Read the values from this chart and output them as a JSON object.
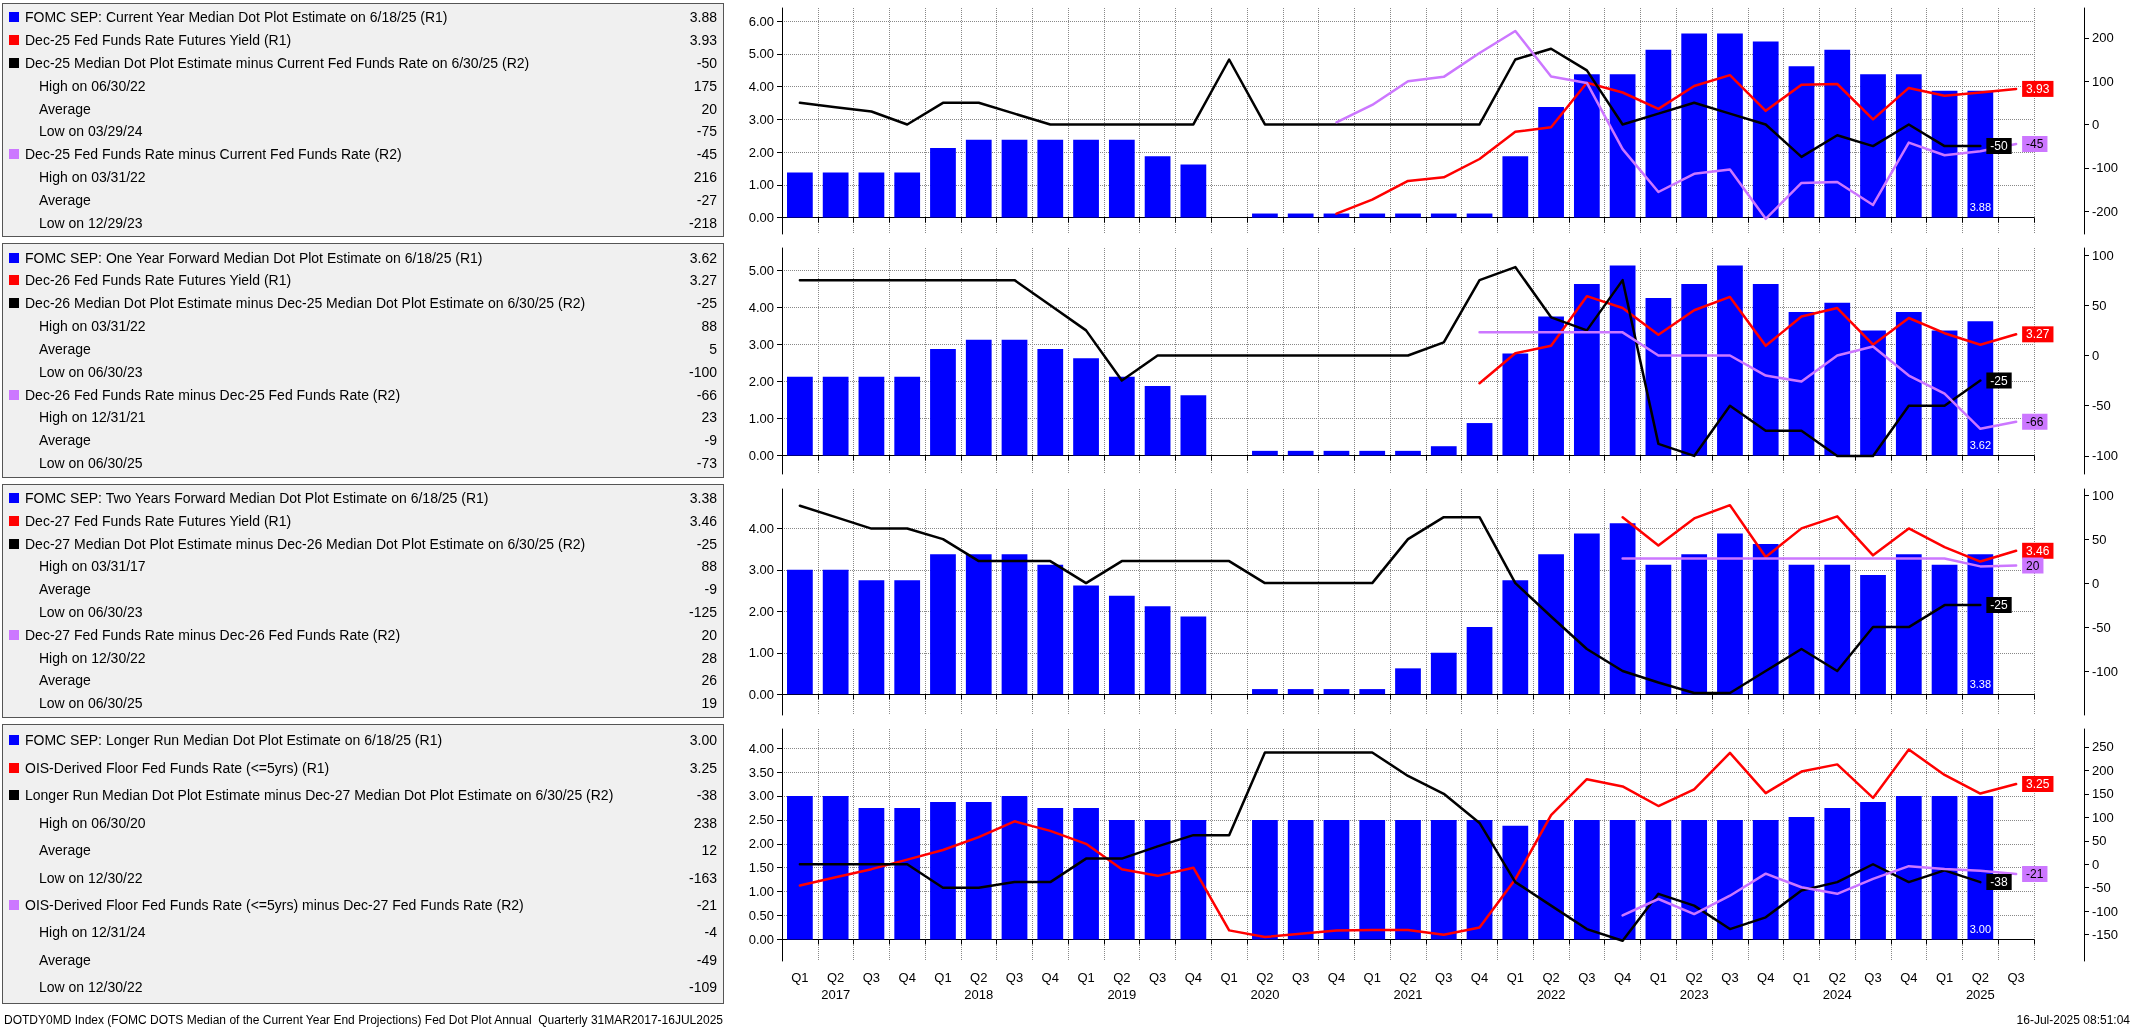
{
  "chart_data": [
    {
      "type": "bar",
      "legend": "left",
      "grid": true,
      "tick_labels": "y",
      "categories": [
        null,
        null,
        null,
        null,
        null,
        null,
        null,
        null,
        null,
        null,
        null,
        null,
        null,
        null,
        null,
        null,
        null,
        null,
        null,
        null,
        null,
        null,
        null,
        null,
        null,
        null,
        null,
        null,
        null,
        null,
        null,
        null,
        null,
        null,
        null
      ],
      "ylim": [
        -0.5,
        6.4
      ],
      "yticks": [
        {
          "value": 0,
          "label": "0.00"
        },
        {
          "value": 1,
          "label": "1.00"
        },
        {
          "value": 2,
          "label": "2.00"
        },
        {
          "value": 3,
          "label": "3.00"
        },
        {
          "value": 4,
          "label": "4.00"
        },
        {
          "value": 5,
          "label": "5.00"
        },
        {
          "value": 6,
          "label": "6.00"
        }
      ],
      "y2lim": [
        -253,
        269
      ],
      "y2ticks": [
        -200,
        -100,
        0,
        100,
        200
      ],
      "series": [
        {
          "name": "FOMC SEP: Current Year Median Dot Plot Estimate on 6/18/25 (R1)",
          "color": "#0000ff",
          "values": [
            1.375,
            1.375,
            1.375,
            1.375,
            2.125,
            2.375,
            2.375,
            2.375,
            2.375,
            2.375,
            1.875,
            1.625,
            null,
            0.125,
            0.125,
            0.125,
            0.125,
            0.125,
            0.125,
            0.125,
            1.875,
            3.375,
            4.375,
            4.375,
            5.125,
            5.625,
            5.625,
            5.375,
            4.625,
            5.125,
            4.375,
            4.375,
            3.875,
            3.875,
            null
          ],
          "value_labels": [
            null,
            null,
            null,
            null,
            null,
            null,
            null,
            null,
            null,
            null,
            null,
            null,
            null,
            null,
            null,
            null,
            null,
            null,
            null,
            null,
            null,
            null,
            null,
            null,
            null,
            null,
            null,
            null,
            null,
            null,
            null,
            null,
            null,
            "3.88",
            null
          ]
        },
        {
          "name": "Dec-25 Fed Funds Rate Futures Yield (R1)",
          "type": "line",
          "color": "#ff0000",
          "values": [
            null,
            null,
            null,
            null,
            null,
            null,
            null,
            null,
            null,
            null,
            null,
            null,
            null,
            null,
            null,
            0.12,
            0.55,
            1.12,
            1.23,
            1.79,
            2.62,
            2.76,
            4.12,
            3.82,
            3.32,
            4.02,
            4.35,
            3.26,
            4.06,
            4.08,
            3.0,
            3.96,
            3.72,
            3.82,
            3.93
          ],
          "value_labels": [
            null,
            null,
            null,
            null,
            null,
            null,
            null,
            null,
            null,
            null,
            null,
            null,
            null,
            null,
            null,
            null,
            null,
            null,
            null,
            null,
            null,
            null,
            null,
            null,
            null,
            null,
            null,
            null,
            null,
            null,
            null,
            null,
            null,
            null,
            "3.93"
          ]
        },
        {
          "name": "Dec-25 Median Dot Plot Estimate minus Current Fed Funds Rate on 6/30/25 (R2)",
          "type": "line",
          "axis": "y2",
          "color": "#000000",
          "values": [
            50,
            40,
            30,
            0,
            50,
            50,
            25,
            0,
            0,
            0,
            0,
            0,
            150,
            0,
            0,
            0,
            0,
            0,
            0,
            0,
            150,
            175,
            125,
            0,
            25,
            50,
            25,
            0,
            -75,
            -25,
            -50,
            0,
            -50,
            -50,
            null
          ],
          "value_labels": [
            null,
            null,
            null,
            null,
            null,
            null,
            null,
            null,
            null,
            null,
            null,
            null,
            null,
            null,
            null,
            null,
            null,
            null,
            null,
            null,
            null,
            null,
            null,
            null,
            null,
            null,
            null,
            null,
            null,
            null,
            null,
            null,
            null,
            "-50",
            null
          ]
        },
        {
          "name": "Dec-25 Fed Funds Rate minus Current Fed Funds Rate (R2)",
          "type": "line",
          "axis": "y2",
          "color": "#cc77ff",
          "values": [
            null,
            null,
            null,
            null,
            null,
            null,
            null,
            null,
            null,
            null,
            null,
            null,
            null,
            null,
            null,
            5,
            45,
            100,
            110,
            165,
            216,
            111,
            96,
            -57,
            -156,
            -114,
            -104,
            -218,
            -135,
            -133,
            -186,
            -42,
            -71,
            -62,
            -45
          ],
          "value_labels": [
            null,
            null,
            null,
            null,
            null,
            null,
            null,
            null,
            null,
            null,
            null,
            null,
            null,
            null,
            null,
            null,
            null,
            null,
            null,
            null,
            null,
            null,
            null,
            null,
            null,
            null,
            null,
            null,
            null,
            null,
            null,
            null,
            null,
            null,
            "-45"
          ]
        }
      ],
      "annotations": [
        "High on 06/30/22",
        "175",
        "Average",
        "20",
        "Low on 03/29/24",
        "-75",
        "High on 03/31/22",
        "216",
        "Average",
        "-27",
        "Low on 12/29/23",
        "-218"
      ]
    },
    {
      "type": "bar",
      "legend": "left",
      "grid": true,
      "tick_labels": "y",
      "categories": [
        null,
        null,
        null,
        null,
        null,
        null,
        null,
        null,
        null,
        null,
        null,
        null,
        null,
        null,
        null,
        null,
        null,
        null,
        null,
        null,
        null,
        null,
        null,
        null,
        null,
        null,
        null,
        null,
        null,
        null,
        null,
        null,
        null,
        null,
        null
      ],
      "ylim": [
        -0.5,
        5.6
      ],
      "yticks": [
        {
          "value": 0,
          "label": "0.00"
        },
        {
          "value": 1,
          "label": "1.00"
        },
        {
          "value": 2,
          "label": "2.00"
        },
        {
          "value": 3,
          "label": "3.00"
        },
        {
          "value": 4,
          "label": "4.00"
        },
        {
          "value": 5,
          "label": "5.00"
        }
      ],
      "y2lim": [
        -118,
        107
      ],
      "y2ticks": [
        -100,
        -50,
        0,
        50,
        100
      ],
      "series": [
        {
          "name": "FOMC SEP: One Year Forward Median Dot Plot Estimate on 6/18/25 (R1)",
          "color": "#0000ff",
          "values": [
            2.125,
            2.125,
            2.125,
            2.125,
            2.875,
            3.125,
            3.125,
            2.875,
            2.625,
            2.125,
            1.875,
            1.625,
            null,
            0.125,
            0.125,
            0.125,
            0.125,
            0.125,
            0.25,
            0.875,
            2.75,
            3.75,
            4.625,
            5.125,
            4.25,
            4.625,
            5.125,
            4.625,
            3.875,
            4.125,
            3.375,
            3.875,
            3.375,
            3.625,
            null
          ],
          "value_labels": [
            null,
            null,
            null,
            null,
            null,
            null,
            null,
            null,
            null,
            null,
            null,
            null,
            null,
            null,
            null,
            null,
            null,
            null,
            null,
            null,
            null,
            null,
            null,
            null,
            null,
            null,
            null,
            null,
            null,
            null,
            null,
            null,
            null,
            "3.62",
            null
          ]
        },
        {
          "name": "Dec-26 Fed Funds Rate Futures Yield (R1)",
          "type": "line",
          "color": "#ff0000",
          "values": [
            null,
            null,
            null,
            null,
            null,
            null,
            null,
            null,
            null,
            null,
            null,
            null,
            null,
            null,
            null,
            null,
            null,
            null,
            null,
            1.95,
            2.76,
            2.96,
            4.3,
            3.98,
            3.26,
            3.92,
            4.28,
            2.96,
            3.75,
            3.98,
            2.99,
            3.71,
            3.3,
            2.99,
            3.27
          ],
          "value_labels": [
            null,
            null,
            null,
            null,
            null,
            null,
            null,
            null,
            null,
            null,
            null,
            null,
            null,
            null,
            null,
            null,
            null,
            null,
            null,
            null,
            null,
            null,
            null,
            null,
            null,
            null,
            null,
            null,
            null,
            null,
            null,
            null,
            null,
            null,
            "3.27"
          ]
        },
        {
          "name": "Dec-26 Median Dot Plot Estimate minus Dec-25 Median Dot Plot Estimate on 6/30/25 (R2)",
          "type": "line",
          "axis": "y2",
          "color": "#000000",
          "values": [
            75,
            75,
            75,
            75,
            75,
            75,
            75,
            50,
            25,
            -25,
            0,
            0,
            0,
            0,
            0,
            0,
            0,
            0,
            13,
            75,
            88,
            38,
            25,
            75,
            -88,
            -100,
            -50,
            -75,
            -75,
            -100,
            -100,
            -50,
            -50,
            -25,
            null
          ],
          "value_labels": [
            null,
            null,
            null,
            null,
            null,
            null,
            null,
            null,
            null,
            null,
            null,
            null,
            null,
            null,
            null,
            null,
            null,
            null,
            null,
            null,
            null,
            null,
            null,
            null,
            null,
            null,
            null,
            null,
            null,
            null,
            null,
            null,
            null,
            "-25",
            null
          ]
        },
        {
          "name": "Dec-26 Fed Funds Rate minus Dec-25 Fed Funds Rate (R2)",
          "type": "line",
          "axis": "y2",
          "color": "#cc77ff",
          "values": [
            null,
            null,
            null,
            null,
            null,
            null,
            null,
            null,
            null,
            null,
            null,
            null,
            null,
            null,
            null,
            null,
            null,
            null,
            null,
            23,
            23,
            23,
            23,
            23,
            0,
            0,
            0,
            -20,
            -26,
            0,
            9,
            -20,
            -38,
            -73,
            -66
          ],
          "value_labels": [
            null,
            null,
            null,
            null,
            null,
            null,
            null,
            null,
            null,
            null,
            null,
            null,
            null,
            null,
            null,
            null,
            null,
            null,
            null,
            null,
            null,
            null,
            null,
            null,
            null,
            null,
            null,
            null,
            null,
            null,
            null,
            null,
            null,
            null,
            "-66"
          ]
        }
      ],
      "annotations": [
        "High on 03/31/22",
        "88",
        "Average",
        "5",
        "Low on 06/30/23",
        "-100",
        "High on 12/31/21",
        "23",
        "Average",
        "-9",
        "Low on 06/30/25",
        "-73"
      ]
    },
    {
      "type": "bar",
      "legend": "left",
      "grid": true,
      "tick_labels": "y",
      "categories": [
        null,
        null,
        null,
        null,
        null,
        null,
        null,
        null,
        null,
        null,
        null,
        null,
        null,
        null,
        null,
        null,
        null,
        null,
        null,
        null,
        null,
        null,
        null,
        null,
        null,
        null,
        null,
        null,
        null,
        null,
        null,
        null,
        null,
        null,
        null
      ],
      "ylim": [
        -0.5,
        4.95
      ],
      "yticks": [
        {
          "value": 0,
          "label": "0.00"
        },
        {
          "value": 1,
          "label": "1.00"
        },
        {
          "value": 2,
          "label": "2.00"
        },
        {
          "value": 3,
          "label": "3.00"
        },
        {
          "value": 4,
          "label": "4.00"
        }
      ],
      "y2lim": [
        -150,
        107
      ],
      "y2ticks": [
        -100,
        -50,
        0,
        50,
        100
      ],
      "series": [
        {
          "name": "FOMC SEP: Two Years Forward Median Dot Plot Estimate on 6/18/25 (R1)",
          "color": "#0000ff",
          "values": [
            3.0,
            3.0,
            2.75,
            2.75,
            3.375,
            3.375,
            3.375,
            3.125,
            2.625,
            2.375,
            2.125,
            1.875,
            null,
            0.125,
            0.125,
            0.125,
            0.125,
            0.625,
            1.0,
            1.625,
            2.75,
            3.375,
            3.875,
            4.125,
            3.125,
            3.375,
            3.875,
            3.625,
            3.125,
            3.125,
            2.875,
            3.375,
            3.125,
            3.375,
            null
          ],
          "value_labels": [
            null,
            null,
            null,
            null,
            null,
            null,
            null,
            null,
            null,
            null,
            null,
            null,
            null,
            null,
            null,
            null,
            null,
            null,
            null,
            null,
            null,
            null,
            null,
            null,
            null,
            null,
            null,
            null,
            null,
            null,
            null,
            null,
            null,
            "3.38",
            null
          ]
        },
        {
          "name": "Dec-27 Fed Funds Rate Futures Yield (R1)",
          "type": "line",
          "color": "#ff0000",
          "values": [
            null,
            null,
            null,
            null,
            null,
            null,
            null,
            null,
            null,
            null,
            null,
            null,
            null,
            null,
            null,
            null,
            null,
            null,
            null,
            null,
            null,
            null,
            null,
            4.27,
            3.59,
            4.24,
            4.56,
            3.31,
            4.0,
            4.29,
            3.35,
            4.0,
            3.55,
            3.2,
            3.46
          ],
          "value_labels": [
            null,
            null,
            null,
            null,
            null,
            null,
            null,
            null,
            null,
            null,
            null,
            null,
            null,
            null,
            null,
            null,
            null,
            null,
            null,
            null,
            null,
            null,
            null,
            null,
            null,
            null,
            null,
            null,
            null,
            null,
            null,
            null,
            null,
            null,
            "3.46"
          ]
        },
        {
          "name": "Dec-27 Median Dot Plot Estimate minus Dec-26 Median Dot Plot Estimate on 6/30/25 (R2)",
          "type": "line",
          "axis": "y2",
          "color": "#000000",
          "values": [
            88,
            75,
            62,
            62,
            50,
            25,
            25,
            25,
            0,
            25,
            25,
            25,
            25,
            0,
            0,
            0,
            0,
            50,
            75,
            75,
            0,
            -38,
            -75,
            -100,
            -113,
            -125,
            -125,
            -100,
            -75,
            -100,
            -50,
            -50,
            -25,
            -25,
            null
          ],
          "value_labels": [
            null,
            null,
            null,
            null,
            null,
            null,
            null,
            null,
            null,
            null,
            null,
            null,
            null,
            null,
            null,
            null,
            null,
            null,
            null,
            null,
            null,
            null,
            null,
            null,
            null,
            null,
            null,
            null,
            null,
            null,
            null,
            null,
            null,
            "-25",
            null
          ]
        },
        {
          "name": "Dec-27 Fed Funds Rate minus Dec-26 Fed Funds Rate (R2)",
          "type": "line",
          "axis": "y2",
          "color": "#cc77ff",
          "values": [
            null,
            null,
            null,
            null,
            null,
            null,
            null,
            null,
            null,
            null,
            null,
            null,
            null,
            null,
            null,
            null,
            null,
            null,
            null,
            null,
            null,
            null,
            null,
            28,
            28,
            28,
            28,
            28,
            28,
            28,
            28,
            28,
            28,
            19,
            20
          ],
          "value_labels": [
            null,
            null,
            null,
            null,
            null,
            null,
            null,
            null,
            null,
            null,
            null,
            null,
            null,
            null,
            null,
            null,
            null,
            null,
            null,
            null,
            null,
            null,
            null,
            null,
            null,
            null,
            null,
            null,
            null,
            null,
            null,
            null,
            null,
            null,
            "20"
          ]
        }
      ],
      "annotations": [
        "High on 03/31/17",
        "88",
        "Average",
        "-9",
        "Low on 06/30/23",
        "-125",
        "High on 12/30/22",
        "28",
        "Average",
        "26",
        "Low on 06/30/25",
        "19"
      ]
    },
    {
      "type": "bar",
      "legend": "left",
      "grid": true,
      "categories": [
        "Q1",
        "Q2\n2017",
        "Q3",
        "Q4",
        "Q1",
        "Q2\n2018",
        "Q3",
        "Q4",
        "Q1",
        "Q2\n2019",
        "Q3",
        "Q4",
        "Q1",
        "Q2\n2020",
        "Q3",
        "Q4",
        "Q1",
        "Q2\n2021",
        "Q3",
        "Q4",
        "Q1",
        "Q2\n2022",
        "Q3",
        "Q4",
        "Q1",
        "Q2\n2023",
        "Q3",
        "Q4",
        "Q1",
        "Q2\n2024",
        "Q3",
        "Q4",
        "Q1",
        "Q2\n2025",
        "Q3"
      ],
      "ylim": [
        -0.45,
        4.4
      ],
      "yticks": [
        {
          "value": 0,
          "label": "0.00"
        },
        {
          "value": 0.5,
          "label": "0.50"
        },
        {
          "value": 1,
          "label": "1.00"
        },
        {
          "value": 1.5,
          "label": "1.50"
        },
        {
          "value": 2,
          "label": "2.00"
        },
        {
          "value": 2.5,
          "label": "2.50"
        },
        {
          "value": 3,
          "label": "3.00"
        },
        {
          "value": 3.5,
          "label": "3.50"
        },
        {
          "value": 4,
          "label": "4.00"
        }
      ],
      "y2lim": [
        -206,
        288
      ],
      "y2ticks": [
        -150,
        -100,
        -50,
        0,
        50,
        100,
        150,
        200,
        250
      ],
      "series": [
        {
          "name": "FOMC SEP: Longer Run Median Dot Plot Estimate on 6/18/25 (R1)",
          "color": "#0000ff",
          "values": [
            3.0,
            3.0,
            2.75,
            2.75,
            2.875,
            2.875,
            3.0,
            2.75,
            2.75,
            2.5,
            2.5,
            2.5,
            null,
            2.5,
            2.5,
            2.5,
            2.5,
            2.5,
            2.5,
            2.5,
            2.375,
            2.5,
            2.5,
            2.5,
            2.5,
            2.5,
            2.5,
            2.5,
            2.5625,
            2.75,
            2.875,
            3.0,
            3.0,
            3.0,
            null
          ],
          "value_labels": [
            null,
            null,
            null,
            null,
            null,
            null,
            null,
            null,
            null,
            null,
            null,
            null,
            null,
            null,
            null,
            null,
            null,
            null,
            null,
            null,
            null,
            null,
            null,
            null,
            null,
            null,
            null,
            null,
            null,
            null,
            null,
            null,
            null,
            "3.00",
            null
          ]
        },
        {
          "name": "OIS-Derived Floor Fed Funds Rate (<=5yrs) (R1)",
          "type": "line",
          "color": "#ff0000",
          "values": [
            1.13,
            1.3,
            1.47,
            1.67,
            1.87,
            2.14,
            2.47,
            2.27,
            2.0,
            1.47,
            1.33,
            1.5,
            0.19,
            0.05,
            0.12,
            0.19,
            0.2,
            0.2,
            0.1,
            0.25,
            1.26,
            2.6,
            3.35,
            3.2,
            2.79,
            3.14,
            3.9,
            3.06,
            3.51,
            3.66,
            2.96,
            3.97,
            3.44,
            3.05,
            3.25
          ],
          "value_labels": [
            null,
            null,
            null,
            null,
            null,
            null,
            null,
            null,
            null,
            null,
            null,
            null,
            null,
            null,
            null,
            null,
            null,
            null,
            null,
            null,
            null,
            null,
            null,
            null,
            null,
            null,
            null,
            null,
            null,
            null,
            null,
            null,
            null,
            null,
            "3.25"
          ]
        },
        {
          "name": "Longer Run Median Dot Plot Estimate minus Dec-27 Median Dot Plot Estimate on 6/30/25 (R2)",
          "type": "line",
          "axis": "y2",
          "color": "#000000",
          "values": [
            0,
            0,
            0,
            0,
            -50,
            -50,
            -38,
            -38,
            12,
            12,
            38,
            62,
            62,
            238,
            238,
            238,
            238,
            188,
            150,
            88,
            -38,
            -88,
            -138,
            -163,
            -63,
            -88,
            -138,
            -113,
            -56,
            -38,
            0,
            -38,
            -13,
            -38,
            null
          ],
          "value_labels": [
            null,
            null,
            null,
            null,
            null,
            null,
            null,
            null,
            null,
            null,
            null,
            null,
            null,
            null,
            null,
            null,
            null,
            null,
            null,
            null,
            null,
            null,
            null,
            null,
            null,
            null,
            null,
            null,
            null,
            null,
            null,
            null,
            null,
            "-38",
            null
          ]
        },
        {
          "name": "OIS-Derived Floor Fed Funds Rate (<=5yrs) minus Dec-27 Fed Funds Rate (R2)",
          "type": "line",
          "axis": "y2",
          "color": "#cc77ff",
          "values": [
            null,
            null,
            null,
            null,
            null,
            null,
            null,
            null,
            null,
            null,
            null,
            null,
            null,
            null,
            null,
            null,
            null,
            null,
            null,
            null,
            null,
            null,
            null,
            -109,
            -74,
            -106,
            -67,
            -20,
            -49,
            -63,
            -31,
            -4,
            -10,
            -14,
            -21
          ],
          "value_labels": [
            null,
            null,
            null,
            null,
            null,
            null,
            null,
            null,
            null,
            null,
            null,
            null,
            null,
            null,
            null,
            null,
            null,
            null,
            null,
            null,
            null,
            null,
            null,
            null,
            null,
            null,
            null,
            null,
            null,
            null,
            null,
            null,
            null,
            null,
            "-21"
          ]
        }
      ],
      "annotations": [
        "High on 06/30/20",
        "238",
        "Average",
        "12",
        "Low on 12/30/22",
        "-163",
        "High on 12/31/24",
        "-4",
        "Average",
        "-49",
        "Low on 12/30/22",
        "-109",
        "DOTDY0MD Index (FOMC DOTS Median of the Current Year End Projections) Fed Dot Plot Annual  Quarterly 31MAR2017-16JUL2025",
        "16-Jul-2025 08:51:04"
      ]
    }
  ]
}
